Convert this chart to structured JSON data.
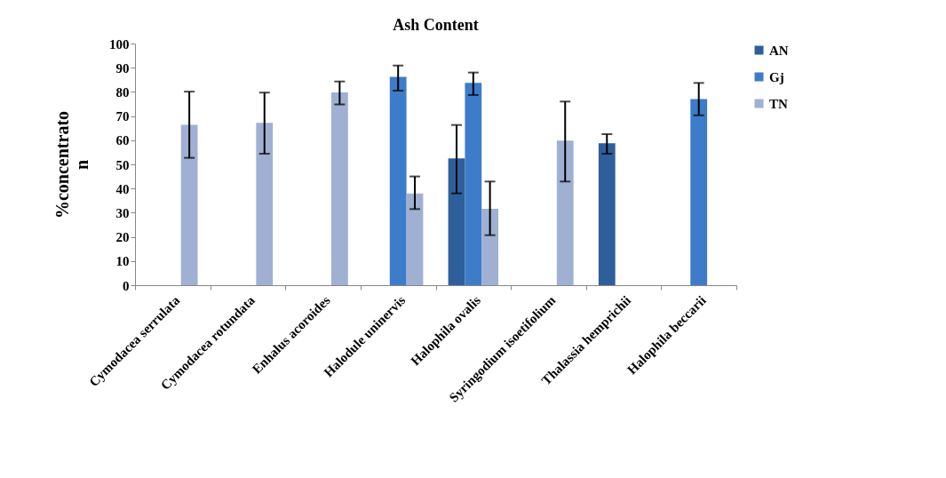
{
  "chart_data": {
    "type": "bar",
    "title": "Ash Content",
    "ylabel": "%concentrato n",
    "categories": [
      "Cymodacea serrulata",
      "Cymodacea rotundata",
      "Enhalus acoroides",
      "Halodule uninervis",
      "Halophila ovalis",
      "Syringodium isoetifolium",
      "Thalassia hemprichii",
      "Halophila beccarii"
    ],
    "series": [
      {
        "name": "AN",
        "color": "#2f5f9a",
        "values": [
          null,
          null,
          null,
          null,
          52.5,
          null,
          58.7,
          null
        ],
        "errors": [
          null,
          null,
          null,
          null,
          [
            38,
            66.3
          ],
          null,
          [
            54.4,
            62.5
          ],
          null
        ]
      },
      {
        "name": "Gj",
        "color": "#3d7cc9",
        "values": [
          null,
          null,
          null,
          86.2,
          83.7,
          null,
          null,
          77
        ],
        "errors": [
          null,
          null,
          null,
          [
            80.5,
            90.9
          ],
          [
            78.7,
            88
          ],
          null,
          null,
          [
            70.3,
            83.7
          ]
        ]
      },
      {
        "name": "TN",
        "color": "#9fb0d3",
        "values": [
          66.4,
          67.2,
          79.8,
          38,
          31.6,
          59.8,
          null,
          null
        ],
        "errors": [
          [
            52.7,
            80.1
          ],
          [
            54.4,
            79.7
          ],
          [
            74.8,
            84.3
          ],
          [
            31.5,
            45
          ],
          [
            20.7,
            42.9
          ],
          [
            42.9,
            76
          ],
          null,
          null
        ]
      }
    ],
    "ylim": [
      0,
      100
    ],
    "yticks": [
      0,
      10,
      20,
      30,
      40,
      50,
      60,
      70,
      80,
      90,
      100
    ],
    "grid": false,
    "legend": "right"
  }
}
